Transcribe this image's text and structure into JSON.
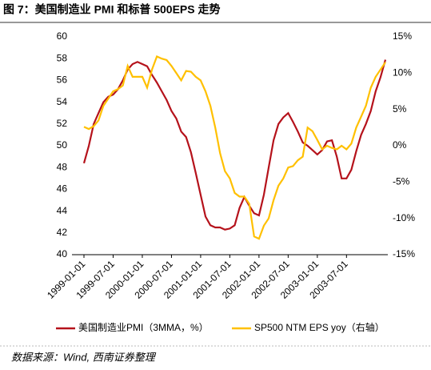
{
  "chart_data": {
    "type": "line",
    "title": "图 7：美国制造业 PMI 和标普 500EPS 走势",
    "source": "数据来源：Wind, 西南证券整理",
    "categories": [
      "1999-01-01",
      null,
      null,
      null,
      null,
      null,
      "1999-07-01",
      null,
      null,
      null,
      null,
      null,
      "2000-01-01",
      null,
      null,
      null,
      null,
      null,
      "2000-07-01",
      null,
      null,
      null,
      null,
      null,
      "2001-01-01",
      null,
      null,
      null,
      null,
      null,
      "2001-07-01",
      null,
      null,
      null,
      null,
      null,
      "2002-01-01",
      null,
      null,
      null,
      null,
      null,
      "2002-07-01",
      null,
      null,
      null,
      null,
      null,
      "2003-01-01",
      null,
      null,
      null,
      null,
      null,
      "2003-07-01",
      null,
      null,
      null,
      null,
      null,
      null,
      null,
      null
    ],
    "series": [
      {
        "name": "美国制造业PMI（3MMA，%）",
        "color": "#b5121b",
        "axis": "y",
        "values": [
          48.4,
          50.0,
          52.0,
          53.0,
          54.0,
          54.5,
          54.7,
          55.2,
          56.0,
          57.0,
          57.5,
          57.7,
          57.5,
          57.3,
          56.5,
          55.8,
          55.0,
          54.2,
          53.2,
          52.5,
          51.3,
          50.8,
          49.4,
          47.5,
          45.5,
          43.5,
          42.7,
          42.5,
          42.5,
          42.3,
          42.4,
          42.7,
          44.3,
          45.3,
          44.5,
          43.8,
          43.6,
          45.5,
          48.0,
          50.5,
          52.0,
          52.6,
          53.0,
          52.2,
          51.3,
          50.3,
          50.0,
          49.6,
          49.2,
          49.6,
          50.4,
          50.5,
          49.0,
          47.0,
          47.0,
          47.8,
          49.5,
          51.0,
          52.0,
          53.2,
          55.0,
          56.3,
          57.9
        ]
      },
      {
        "name": "SP500 NTM EPS yoy（右轴）",
        "color": "#ffc000",
        "axis": "y2",
        "values": [
          2.6,
          2.3,
          2.7,
          3.5,
          5.5,
          6.5,
          7.5,
          7.8,
          8.3,
          11.0,
          9.5,
          9.5,
          9.5,
          8.0,
          10.5,
          12.3,
          12.0,
          11.8,
          11.0,
          10.0,
          9.0,
          10.3,
          10.2,
          9.5,
          9.0,
          7.5,
          5.5,
          2.5,
          -1.0,
          -3.5,
          -4.5,
          -6.5,
          -7.0,
          -7.0,
          -8.0,
          -12.5,
          -12.8,
          -11.0,
          -10.0,
          -7.5,
          -5.5,
          -4.5,
          -3.0,
          -2.8,
          -2.0,
          -1.5,
          2.5,
          2.0,
          0.8,
          -0.5,
          0.0,
          -0.3,
          -0.5,
          0.0,
          -0.5,
          0.3,
          2.5,
          4.0,
          5.5,
          8.0,
          9.5,
          10.5,
          11.5
        ]
      }
    ],
    "ylim": [
      40,
      60
    ],
    "yticks": [
      40,
      42,
      44,
      46,
      48,
      50,
      52,
      54,
      56,
      58,
      60
    ],
    "y2lim": [
      -15,
      15
    ],
    "y2ticks": [
      {
        "value": 15,
        "label": "15%"
      },
      {
        "value": 10,
        "label": "10%"
      },
      {
        "value": 5,
        "label": "5%"
      },
      {
        "value": 0,
        "label": "0%"
      },
      {
        "value": -5,
        "label": "-5%"
      },
      {
        "value": -10,
        "label": "-10%"
      },
      {
        "value": -15,
        "label": "-15%"
      }
    ],
    "grid": false
  }
}
